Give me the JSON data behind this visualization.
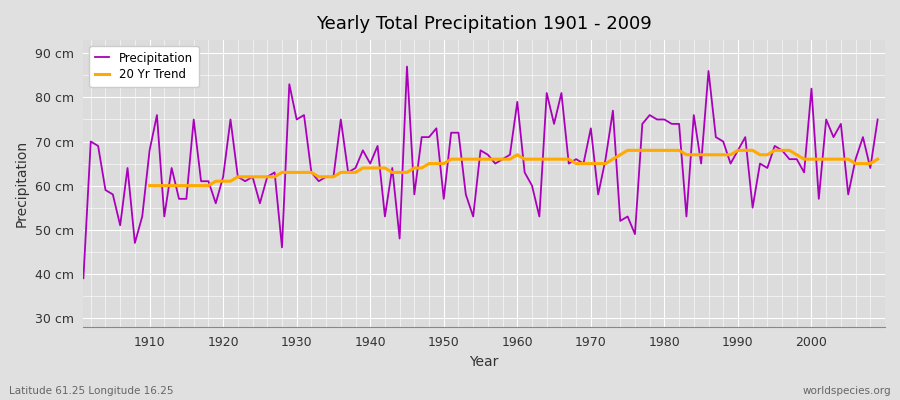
{
  "title": "Yearly Total Precipitation 1901 - 2009",
  "ylabel": "Precipitation",
  "xlabel": "Year",
  "footnote_left": "Latitude 61.25 Longitude 16.25",
  "footnote_right": "worldspecies.org",
  "fig_bg_color": "#e0e0e0",
  "plot_bg_color": "#dcdcdc",
  "precip_color": "#aa00bb",
  "trend_color": "#ffaa00",
  "ylim": [
    28,
    93
  ],
  "yticks": [
    30,
    40,
    50,
    60,
    70,
    80,
    90
  ],
  "ytick_labels": [
    "30 cm",
    "40 cm",
    "50 cm",
    "60 cm",
    "70 cm",
    "80 cm",
    "90 cm"
  ],
  "years": [
    1901,
    1902,
    1903,
    1904,
    1905,
    1906,
    1907,
    1908,
    1909,
    1910,
    1911,
    1912,
    1913,
    1914,
    1915,
    1916,
    1917,
    1918,
    1919,
    1920,
    1921,
    1922,
    1923,
    1924,
    1925,
    1926,
    1927,
    1928,
    1929,
    1930,
    1931,
    1932,
    1933,
    1934,
    1935,
    1936,
    1937,
    1938,
    1939,
    1940,
    1941,
    1942,
    1943,
    1944,
    1945,
    1946,
    1947,
    1948,
    1949,
    1950,
    1951,
    1952,
    1953,
    1954,
    1955,
    1956,
    1957,
    1958,
    1959,
    1960,
    1961,
    1962,
    1963,
    1964,
    1965,
    1966,
    1967,
    1968,
    1969,
    1970,
    1971,
    1972,
    1973,
    1974,
    1975,
    1976,
    1977,
    1978,
    1979,
    1980,
    1981,
    1982,
    1983,
    1984,
    1985,
    1986,
    1987,
    1988,
    1989,
    1990,
    1991,
    1992,
    1993,
    1994,
    1995,
    1996,
    1997,
    1998,
    1999,
    2000,
    2001,
    2002,
    2003,
    2004,
    2005,
    2006,
    2007,
    2008,
    2009
  ],
  "precip": [
    39,
    70,
    69,
    59,
    58,
    51,
    64,
    47,
    53,
    68,
    76,
    53,
    64,
    57,
    57,
    75,
    61,
    61,
    56,
    62,
    75,
    62,
    61,
    62,
    56,
    62,
    63,
    46,
    83,
    75,
    76,
    63,
    61,
    62,
    62,
    75,
    63,
    64,
    68,
    65,
    69,
    53,
    64,
    48,
    87,
    58,
    71,
    71,
    73,
    57,
    72,
    72,
    58,
    53,
    68,
    67,
    65,
    66,
    67,
    79,
    63,
    60,
    53,
    81,
    74,
    81,
    65,
    66,
    65,
    73,
    58,
    66,
    77,
    52,
    53,
    49,
    74,
    76,
    75,
    75,
    74,
    74,
    53,
    76,
    65,
    86,
    71,
    70,
    65,
    68,
    71,
    55,
    65,
    64,
    69,
    68,
    66,
    66,
    63,
    82,
    57,
    75,
    71,
    74,
    58,
    66,
    71,
    64,
    75
  ],
  "trend": [
    null,
    null,
    null,
    null,
    null,
    null,
    null,
    null,
    null,
    60,
    60,
    60,
    60,
    60,
    60,
    60,
    60,
    60,
    61,
    61,
    61,
    62,
    62,
    62,
    62,
    62,
    62,
    63,
    63,
    63,
    63,
    63,
    62,
    62,
    62,
    63,
    63,
    63,
    64,
    64,
    64,
    64,
    63,
    63,
    63,
    64,
    64,
    65,
    65,
    65,
    66,
    66,
    66,
    66,
    66,
    66,
    66,
    66,
    66,
    67,
    66,
    66,
    66,
    66,
    66,
    66,
    66,
    65,
    65,
    65,
    65,
    65,
    66,
    67,
    68,
    68,
    68,
    68,
    68,
    68,
    68,
    68,
    67,
    67,
    67,
    67,
    67,
    67,
    67,
    68,
    68,
    68,
    67,
    67,
    68,
    68,
    68,
    67,
    66,
    66,
    66,
    66,
    66,
    66,
    66,
    65,
    65,
    65,
    66
  ]
}
